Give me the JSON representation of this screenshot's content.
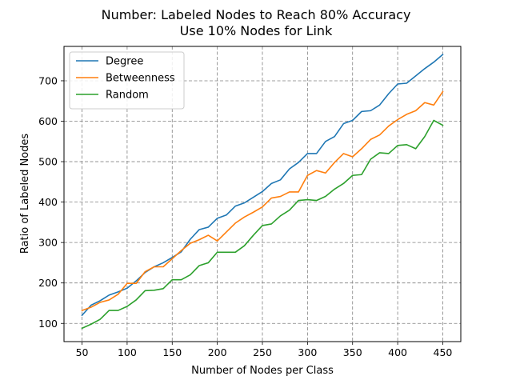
{
  "chart_data": {
    "type": "line",
    "title": "Number: Labeled Nodes to Reach 80% Accuracy",
    "subtitle": "Use 10% Nodes for Link",
    "xlabel": "Number of Nodes per Class",
    "ylabel": "Ratio of Labeled Nodes",
    "xlim": [
      30,
      470
    ],
    "ylim": [
      55,
      785
    ],
    "xticks": [
      50,
      100,
      150,
      200,
      250,
      300,
      350,
      400,
      450
    ],
    "yticks": [
      100,
      200,
      300,
      400,
      500,
      600,
      700
    ],
    "grid": true,
    "legend_position": "upper-left",
    "x": [
      50,
      60,
      70,
      80,
      90,
      100,
      110,
      120,
      130,
      140,
      150,
      160,
      170,
      180,
      190,
      200,
      210,
      220,
      230,
      240,
      250,
      260,
      270,
      280,
      290,
      300,
      310,
      320,
      330,
      340,
      350,
      360,
      370,
      380,
      390,
      400,
      410,
      420,
      430,
      440,
      450
    ],
    "series": [
      {
        "name": "Degree",
        "color": "#1f77b4",
        "values": [
          120,
          145,
          156,
          170,
          178,
          187,
          205,
          226,
          240,
          250,
          263,
          277,
          308,
          332,
          338,
          360,
          368,
          390,
          398,
          412,
          426,
          446,
          455,
          482,
          498,
          520,
          520,
          550,
          562,
          594,
          602,
          624,
          626,
          640,
          668,
          692,
          694,
          712,
          730,
          746,
          765
        ]
      },
      {
        "name": "Betweenness",
        "color": "#ff7f0e",
        "values": [
          132,
          140,
          152,
          158,
          172,
          199,
          199,
          228,
          240,
          240,
          260,
          280,
          298,
          307,
          318,
          304,
          326,
          348,
          363,
          375,
          388,
          410,
          414,
          425,
          425,
          466,
          478,
          472,
          498,
          520,
          512,
          532,
          555,
          566,
          588,
          604,
          617,
          626,
          646,
          640,
          673
        ]
      },
      {
        "name": "Random",
        "color": "#2ca02c",
        "values": [
          88,
          98,
          110,
          132,
          132,
          142,
          158,
          181,
          182,
          186,
          208,
          208,
          220,
          243,
          250,
          276,
          276,
          276,
          292,
          318,
          342,
          346,
          366,
          380,
          404,
          406,
          404,
          414,
          432,
          446,
          466,
          468,
          506,
          522,
          520,
          540,
          542,
          532,
          562,
          602,
          590
        ]
      }
    ]
  }
}
